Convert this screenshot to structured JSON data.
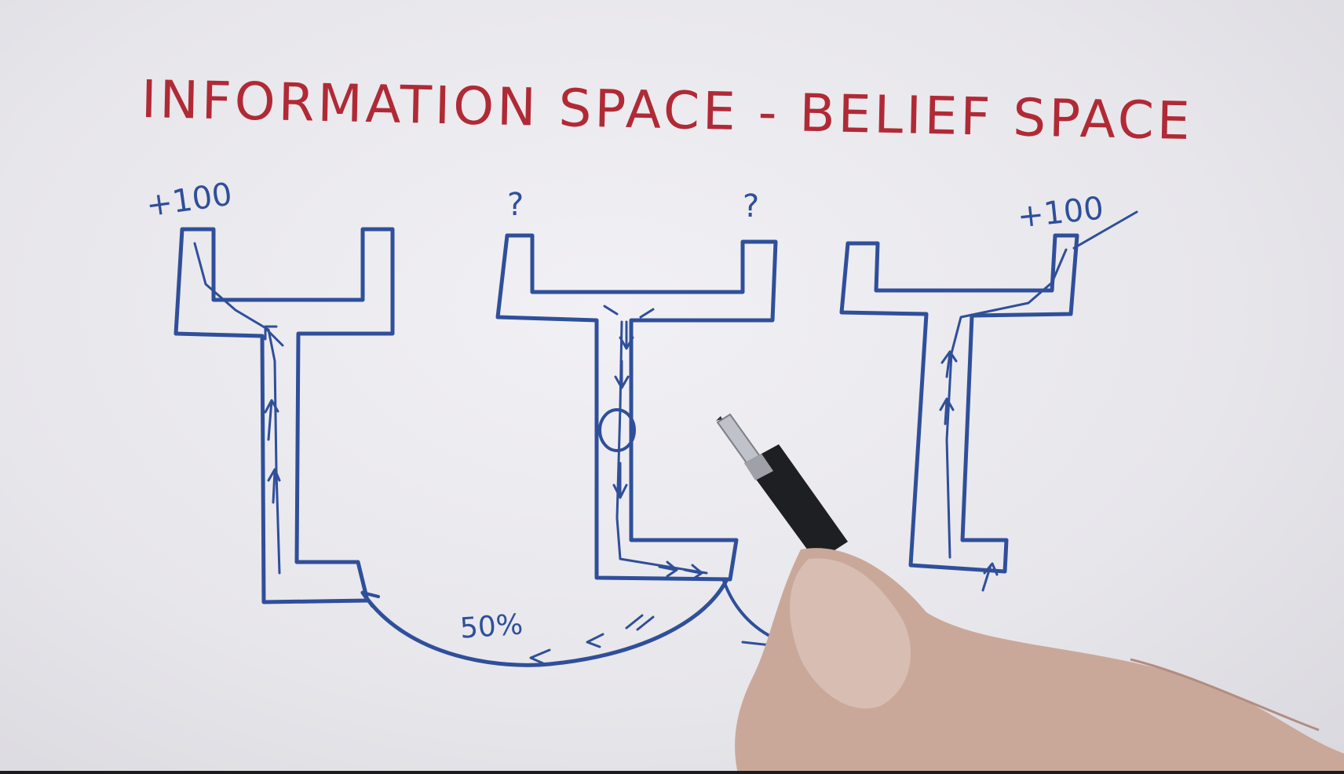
{
  "title": "INFORMATION SPACE - BELIEF SPACE",
  "labels": {
    "left_reward": "+100",
    "right_reward": "+100",
    "middle_question_left": "?",
    "middle_question_right": "?",
    "probability": "50%"
  },
  "colors": {
    "title_ink": "#b02a36",
    "diagram_ink": "#2f4f9a",
    "board": "#eceaef"
  }
}
